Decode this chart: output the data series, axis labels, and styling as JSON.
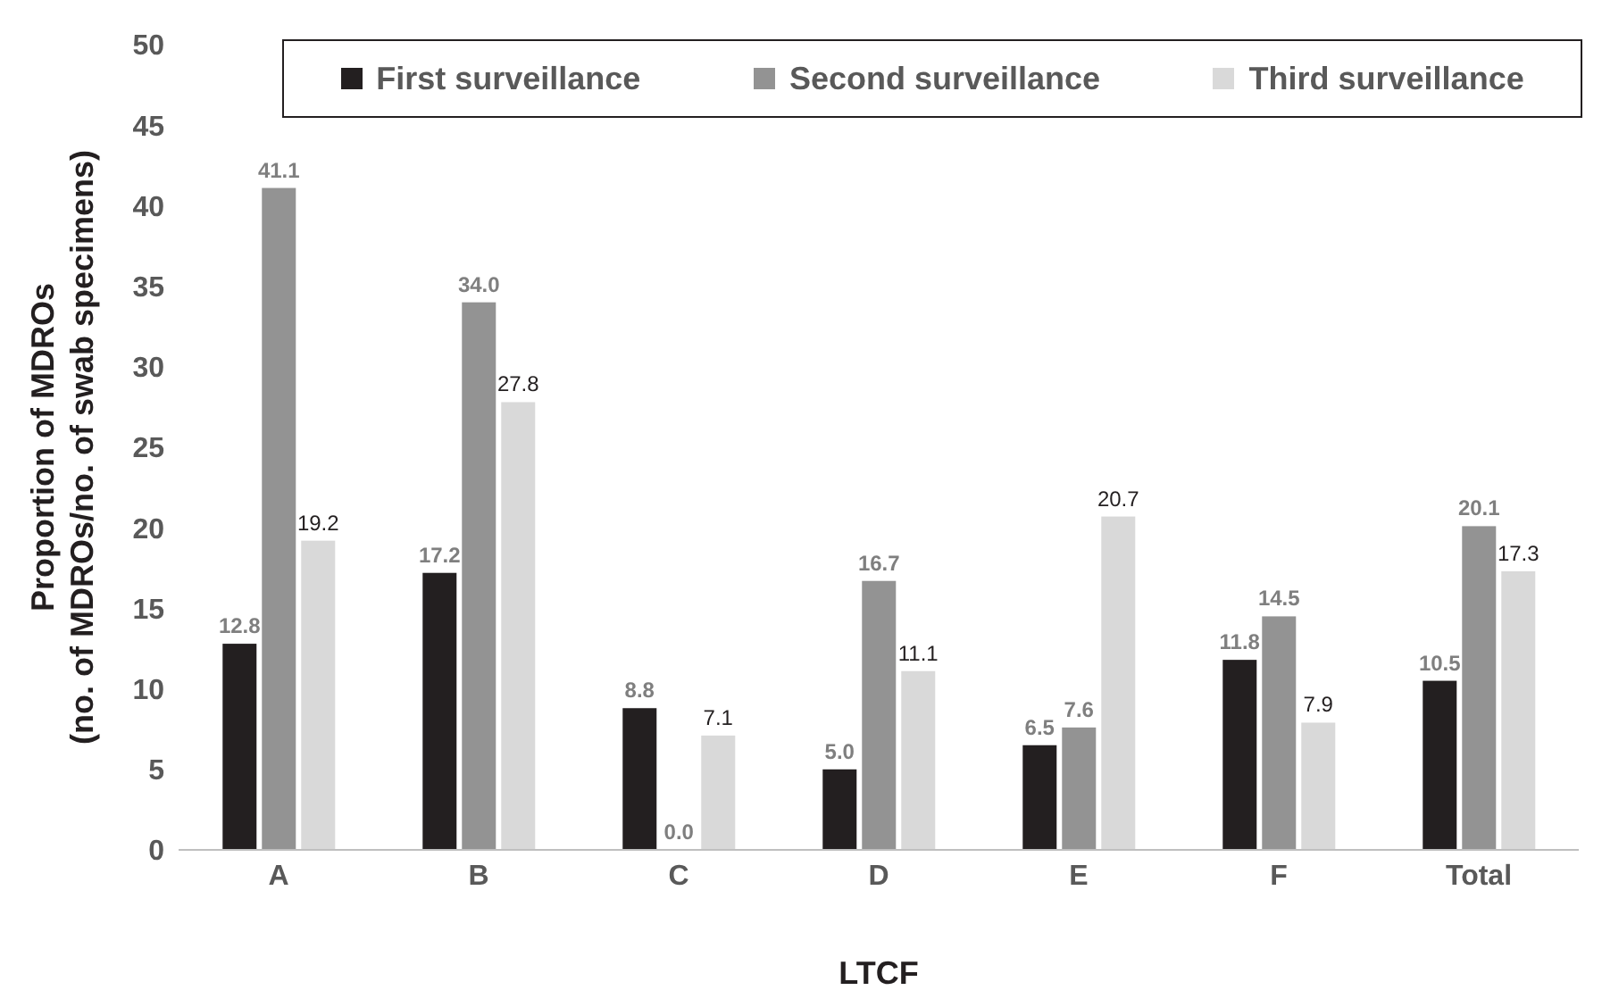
{
  "chart_data": {
    "type": "bar",
    "xlabel": "LTCF",
    "ylabel": "Proportion of MDROs\n(no. of MDROs/no. of swab specimens)",
    "categories": [
      "A",
      "B",
      "C",
      "D",
      "E",
      "F",
      "Total"
    ],
    "series": [
      {
        "name": "First surveillance",
        "color": "#231f20",
        "values": [
          12.8,
          17.2,
          8.8,
          5.0,
          6.5,
          11.8,
          10.5
        ],
        "value_labels": [
          "12.8",
          "17.2",
          "8.8",
          "5.0",
          "6.5",
          "11.8",
          "10.5"
        ]
      },
      {
        "name": "Second surveillance",
        "color": "#939393",
        "values": [
          41.1,
          34.0,
          0.0,
          16.7,
          7.6,
          14.5,
          20.1
        ],
        "value_labels": [
          "41.1",
          "34.0",
          "0.0",
          "16.7",
          "7.6",
          "14.5",
          "20.1"
        ]
      },
      {
        "name": "Third surveillance",
        "color": "#d9d9d9",
        "values": [
          19.2,
          27.8,
          7.1,
          11.1,
          20.7,
          7.9,
          17.3
        ],
        "value_labels": [
          "19.2",
          "27.8",
          "7.1",
          "11.1",
          "20.7",
          "7.9",
          "17.3"
        ]
      }
    ],
    "ylim": [
      0,
      50
    ],
    "yticks": [
      0,
      5,
      10,
      15,
      20,
      25,
      30,
      35,
      40,
      45,
      50
    ],
    "grid": false,
    "legend": "top"
  }
}
